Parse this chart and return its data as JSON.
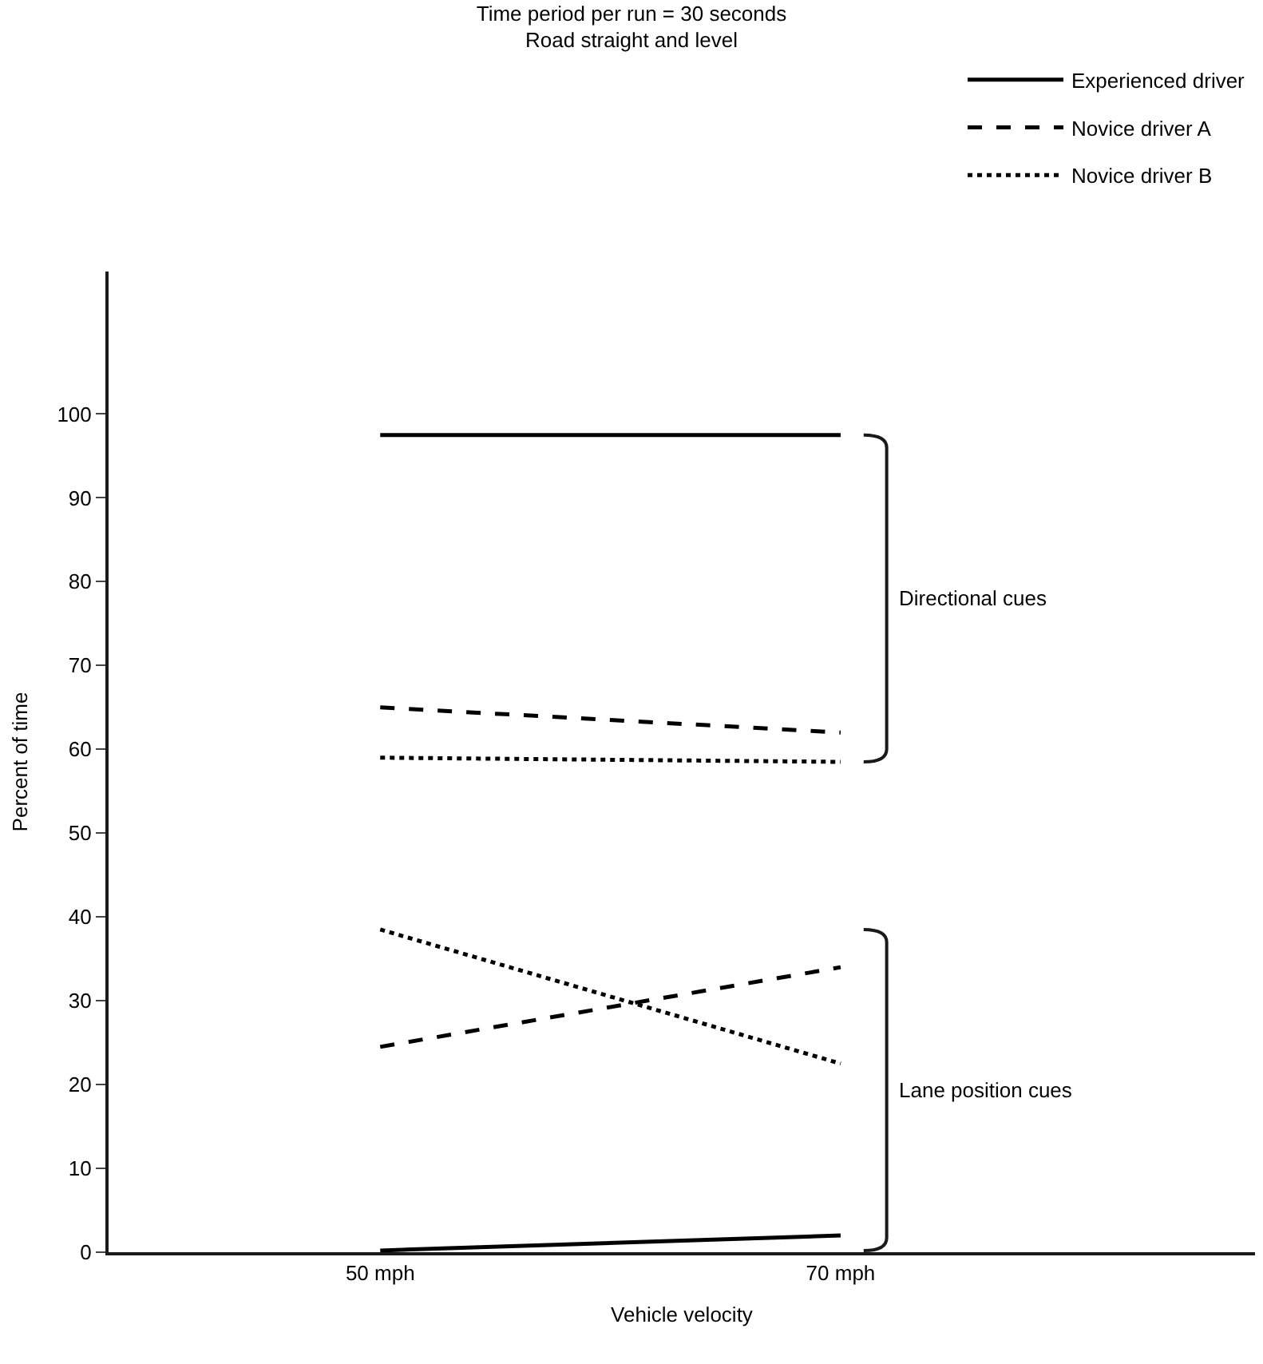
{
  "chart_data": {
    "type": "line",
    "title": "Time period per run = 30 seconds",
    "subtitle": "Road straight and level",
    "xlabel": "Vehicle velocity",
    "ylabel": "Percent of time",
    "categories": [
      "50 mph",
      "70 mph"
    ],
    "series": [
      {
        "name": "Experienced driver",
        "color": "#000000",
        "line_style": "solid",
        "values": [
          97.5,
          97.5
        ]
      },
      {
        "name": "Novice driver A",
        "color": "#000000",
        "line_style": "dashed",
        "values": [
          65,
          62
        ]
      },
      {
        "name": "Novice driver B",
        "color": "#000000",
        "line_style": "dotted",
        "values": [
          59,
          58.5
        ]
      },
      {
        "color": "#000000",
        "line_style": "solid",
        "values": [
          0.2,
          2
        ]
      },
      {
        "color": "#000000",
        "line_style": "dashed",
        "values": [
          24.5,
          34
        ]
      },
      {
        "color": "#000000",
        "line_style": "dotted",
        "values": [
          38.5,
          22.5
        ]
      }
    ],
    "annotations": [
      "Directional cues",
      "Lane position cues"
    ],
    "ylim": [
      0,
      117
    ],
    "yticks": [
      0,
      10,
      20,
      30,
      40,
      50,
      60,
      70,
      80,
      90,
      100
    ],
    "legend": "top right",
    "marker": "none"
  }
}
